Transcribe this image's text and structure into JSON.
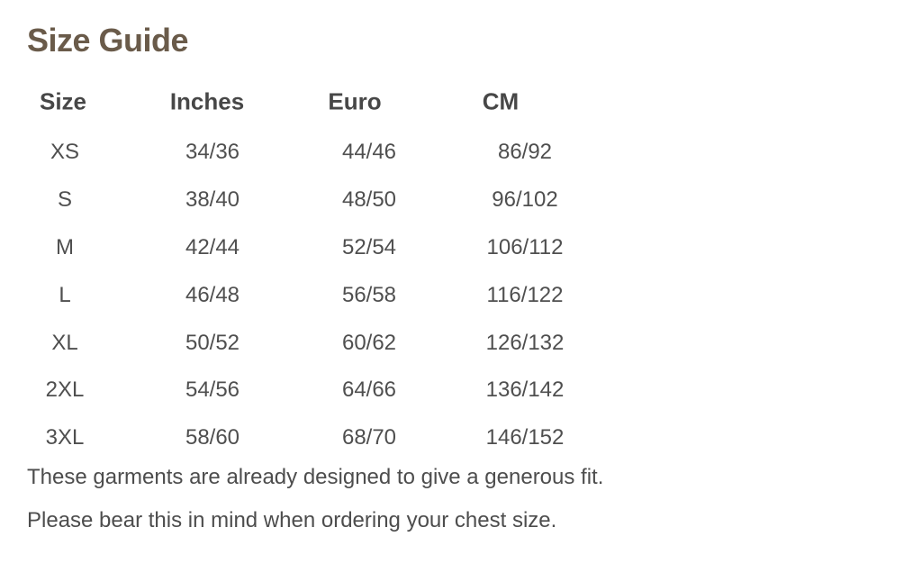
{
  "title": "Size Guide",
  "colors": {
    "background": "#ffffff",
    "title_text": "#6a5b4a",
    "header_text": "#474747",
    "body_text": "#4f4f4f",
    "note_text": "#4d4d4d"
  },
  "table": {
    "columns": [
      "Size",
      "Inches",
      "Euro",
      "CM"
    ],
    "rows": [
      {
        "size": "XS",
        "inches": "34/36",
        "euro": "44/46",
        "cm": "86/92"
      },
      {
        "size": "S",
        "inches": "38/40",
        "euro": "48/50",
        "cm": "96/102"
      },
      {
        "size": "M",
        "inches": "42/44",
        "euro": "52/54",
        "cm": "106/112"
      },
      {
        "size": "L",
        "inches": "46/48",
        "euro": "56/58",
        "cm": "116/122"
      },
      {
        "size": "XL",
        "inches": "50/52",
        "euro": "60/62",
        "cm": "126/132"
      },
      {
        "size": "2XL",
        "inches": "54/56",
        "euro": "64/66",
        "cm": "136/142"
      },
      {
        "size": "3XL",
        "inches": "58/60",
        "euro": "68/70",
        "cm": "146/152"
      }
    ]
  },
  "notes": [
    "These garments are already designed to give a generous fit.",
    "Please bear this in mind when ordering your chest size."
  ]
}
